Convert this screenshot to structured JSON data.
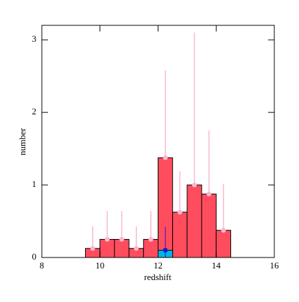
{
  "chart_data": {
    "type": "histogram",
    "xlabel": "redshift",
    "ylabel": "number",
    "bins": [
      9.5,
      10,
      10.5,
      11,
      11.5,
      12,
      12.5,
      13,
      13.5,
      14,
      14.5
    ],
    "series": [
      {
        "color": "#ff4d5e",
        "err_color": "#f7b8cf",
        "values": [
          0.125,
          0.25,
          0.25,
          0.125,
          0.25,
          1.375,
          0.625,
          1.0,
          0.875,
          0.375
        ],
        "err_high": [
          0.43,
          0.64,
          0.64,
          0.43,
          0.64,
          2.58,
          1.19,
          3.1,
          1.75,
          1.01
        ]
      },
      {
        "color": "#00b4e6",
        "values": [
          null,
          null,
          null,
          null,
          null,
          0.1,
          null,
          null,
          null,
          null
        ]
      }
    ],
    "points": {
      "x": [
        12.25
      ],
      "y": [
        0.1
      ],
      "err_high": [
        0.42
      ],
      "color": "#1a1ad0"
    },
    "xlim": [
      8,
      16
    ],
    "ylim": [
      0,
      3.2
    ],
    "xticks": [
      8,
      10,
      12,
      14,
      16
    ],
    "yticks": [
      0,
      1,
      2,
      3
    ]
  }
}
